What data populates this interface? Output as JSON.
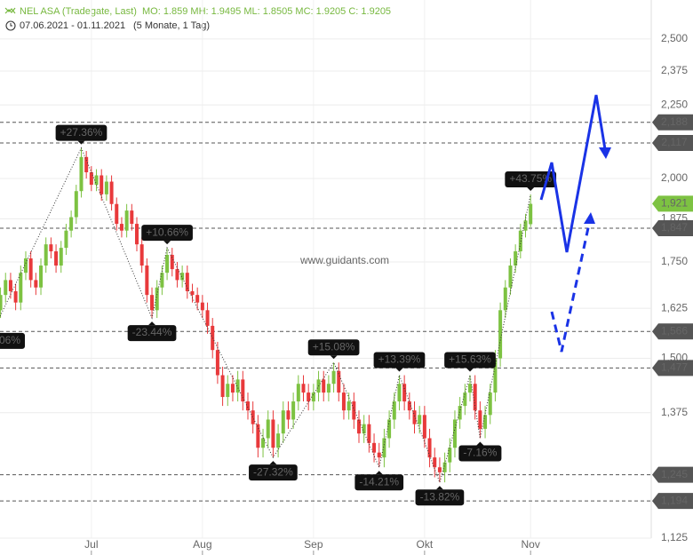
{
  "header": {
    "title": "NEL ASA (Tradegate, Last)",
    "ohlc": "MO: 1.859 MH: 1.9495 ML: 1.8505 MC: 1.9205 C: 1.9205",
    "range": "07.06.2021 - 01.11.2021",
    "duration": "(5 Monate, 1 Tag)"
  },
  "chart_data": {
    "type": "candlestick",
    "log_scale": true,
    "grid": true,
    "watermark": "www.guidants.com",
    "up_color": "#7dc242",
    "down_color": "#e8393b",
    "xlim": [
      0.9,
      129.9
    ],
    "xticks": [
      {
        "value": 19,
        "label": "Jul"
      },
      {
        "value": 41,
        "label": "Aug"
      },
      {
        "value": 63,
        "label": "Sep"
      },
      {
        "value": 85,
        "label": "Okt"
      },
      {
        "value": 106,
        "label": "Nov"
      }
    ],
    "ylim": [
      1.125,
      2.661
    ],
    "yticks": [
      {
        "value": 2.5,
        "label": "2,500"
      },
      {
        "value": 2.375,
        "label": "2,375"
      },
      {
        "value": 2.25,
        "label": "2,250"
      },
      {
        "value": 2.0,
        "label": "2,000"
      },
      {
        "value": 1.875,
        "label": "1,875"
      },
      {
        "value": 1.75,
        "label": "1,750"
      },
      {
        "value": 1.625,
        "label": "1,625"
      },
      {
        "value": 1.5,
        "label": "1,500"
      },
      {
        "value": 1.375,
        "label": "1,375"
      },
      {
        "value": 1.125,
        "label": "1,125"
      }
    ],
    "open": [
      1.6,
      1.62,
      1.66,
      1.7,
      1.67,
      1.64,
      1.72,
      1.76,
      1.7,
      1.68,
      1.74,
      1.8,
      1.78,
      1.74,
      1.79,
      1.84,
      1.88,
      1.96,
      2.07,
      2.02,
      1.98,
      2.01,
      1.95,
      1.99,
      1.92,
      1.86,
      1.84,
      1.9,
      1.86,
      1.8,
      1.74,
      1.66,
      1.62,
      1.68,
      1.72,
      1.77,
      1.73,
      1.7,
      1.72,
      1.67,
      1.66,
      1.64,
      1.62,
      1.58,
      1.52,
      1.46,
      1.41,
      1.44,
      1.42,
      1.45,
      1.4,
      1.38,
      1.35,
      1.3,
      1.32,
      1.36,
      1.3,
      1.33,
      1.38,
      1.36,
      1.4,
      1.44,
      1.42,
      1.4,
      1.42,
      1.45,
      1.42,
      1.44,
      1.47,
      1.42,
      1.38,
      1.4,
      1.36,
      1.33,
      1.35,
      1.31,
      1.29,
      1.28,
      1.32,
      1.36,
      1.4,
      1.44,
      1.4,
      1.38,
      1.35,
      1.37,
      1.32,
      1.28,
      1.26,
      1.25,
      1.27,
      1.3,
      1.36,
      1.39,
      1.42,
      1.44,
      1.38,
      1.34,
      1.37,
      1.42,
      1.5,
      1.62,
      1.68,
      1.74,
      1.78,
      1.84,
      1.859
    ],
    "high": [
      1.64,
      1.68,
      1.72,
      1.72,
      1.69,
      1.74,
      1.78,
      1.78,
      1.72,
      1.76,
      1.82,
      1.82,
      1.8,
      1.81,
      1.86,
      1.9,
      1.98,
      2.1,
      2.09,
      2.04,
      2.03,
      2.03,
      2.01,
      2.01,
      1.94,
      1.88,
      1.92,
      1.92,
      1.88,
      1.82,
      1.76,
      1.68,
      1.7,
      1.74,
      1.79,
      1.79,
      1.75,
      1.74,
      1.74,
      1.69,
      1.68,
      1.66,
      1.64,
      1.6,
      1.54,
      1.48,
      1.46,
      1.46,
      1.47,
      1.47,
      1.42,
      1.4,
      1.37,
      1.34,
      1.38,
      1.38,
      1.35,
      1.4,
      1.4,
      1.42,
      1.46,
      1.46,
      1.44,
      1.44,
      1.47,
      1.47,
      1.46,
      1.49,
      1.49,
      1.44,
      1.42,
      1.42,
      1.38,
      1.37,
      1.37,
      1.33,
      1.31,
      1.34,
      1.38,
      1.42,
      1.46,
      1.46,
      1.42,
      1.4,
      1.39,
      1.39,
      1.34,
      1.3,
      1.28,
      1.29,
      1.32,
      1.38,
      1.41,
      1.44,
      1.46,
      1.46,
      1.4,
      1.39,
      1.44,
      1.52,
      1.64,
      1.7,
      1.76,
      1.8,
      1.86,
      1.89,
      1.9495
    ],
    "low": [
      1.58,
      1.6,
      1.64,
      1.65,
      1.62,
      1.62,
      1.7,
      1.68,
      1.66,
      1.66,
      1.72,
      1.76,
      1.72,
      1.72,
      1.77,
      1.82,
      1.86,
      1.94,
      2.0,
      1.96,
      1.96,
      1.93,
      1.93,
      1.9,
      1.84,
      1.82,
      1.82,
      1.84,
      1.78,
      1.72,
      1.64,
      1.6,
      1.6,
      1.66,
      1.7,
      1.71,
      1.68,
      1.68,
      1.65,
      1.64,
      1.62,
      1.6,
      1.56,
      1.5,
      1.44,
      1.39,
      1.39,
      1.4,
      1.4,
      1.38,
      1.36,
      1.33,
      1.28,
      1.28,
      1.3,
      1.28,
      1.28,
      1.31,
      1.34,
      1.34,
      1.38,
      1.4,
      1.38,
      1.38,
      1.4,
      1.4,
      1.4,
      1.42,
      1.4,
      1.36,
      1.36,
      1.34,
      1.31,
      1.31,
      1.29,
      1.27,
      1.26,
      1.26,
      1.3,
      1.34,
      1.38,
      1.38,
      1.36,
      1.33,
      1.33,
      1.3,
      1.26,
      1.24,
      1.23,
      1.23,
      1.25,
      1.28,
      1.34,
      1.37,
      1.4,
      1.36,
      1.32,
      1.32,
      1.35,
      1.4,
      1.48,
      1.6,
      1.66,
      1.72,
      1.76,
      1.82,
      1.8505
    ],
    "close": [
      1.62,
      1.66,
      1.7,
      1.67,
      1.64,
      1.72,
      1.76,
      1.7,
      1.68,
      1.74,
      1.8,
      1.78,
      1.74,
      1.79,
      1.84,
      1.88,
      1.96,
      2.07,
      2.02,
      1.98,
      2.01,
      1.95,
      1.99,
      1.92,
      1.86,
      1.84,
      1.9,
      1.86,
      1.8,
      1.74,
      1.66,
      1.62,
      1.68,
      1.72,
      1.77,
      1.73,
      1.7,
      1.72,
      1.67,
      1.66,
      1.64,
      1.62,
      1.58,
      1.52,
      1.46,
      1.41,
      1.44,
      1.42,
      1.45,
      1.4,
      1.38,
      1.35,
      1.3,
      1.32,
      1.36,
      1.3,
      1.33,
      1.38,
      1.36,
      1.4,
      1.44,
      1.42,
      1.4,
      1.42,
      1.45,
      1.42,
      1.44,
      1.47,
      1.42,
      1.38,
      1.4,
      1.36,
      1.33,
      1.35,
      1.31,
      1.29,
      1.28,
      1.32,
      1.36,
      1.4,
      1.44,
      1.4,
      1.38,
      1.35,
      1.37,
      1.32,
      1.28,
      1.26,
      1.25,
      1.27,
      1.3,
      1.36,
      1.39,
      1.42,
      1.44,
      1.38,
      1.34,
      1.37,
      1.42,
      1.5,
      1.62,
      1.68,
      1.74,
      1.78,
      1.84,
      1.87,
      1.9205
    ],
    "pivots": [
      {
        "text": "06%",
        "x": 0,
        "y": 1.58
      },
      {
        "text": "+27.36%",
        "x": 17,
        "y": 2.1
      },
      {
        "text": "-23.44%",
        "x": 31,
        "y": 1.6
      },
      {
        "text": "+10.66%",
        "x": 34,
        "y": 1.79
      },
      {
        "text": "-27.32%",
        "x": 55,
        "y": 1.28
      },
      {
        "text": "+15.08%",
        "x": 67,
        "y": 1.49
      },
      {
        "text": "-14.21%",
        "x": 76,
        "y": 1.26
      },
      {
        "text": "+13.39%",
        "x": 80,
        "y": 1.46
      },
      {
        "text": "-13.82%",
        "x": 88,
        "y": 1.23
      },
      {
        "text": "+15.63%",
        "x": 94,
        "y": 1.46
      },
      {
        "text": "-7.16%",
        "x": 96,
        "y": 1.32
      },
      {
        "text": "+43.75%",
        "x": 106,
        "y": 1.9495
      }
    ],
    "levels": [
      {
        "value": 2.188,
        "label": "2,188"
      },
      {
        "value": 2.117,
        "label": "2,117"
      },
      {
        "value": 1.847,
        "label": "1,847"
      },
      {
        "value": 1.566,
        "label": "1,566"
      },
      {
        "value": 1.477,
        "label": "1,477"
      },
      {
        "value": 1.245,
        "label": "1,245"
      },
      {
        "value": 1.194,
        "label": "1,194"
      }
    ],
    "level_color": "#555555",
    "last_price": {
      "value": 1.921,
      "label": "1,921"
    },
    "last_price_color": "#7dc242"
  }
}
